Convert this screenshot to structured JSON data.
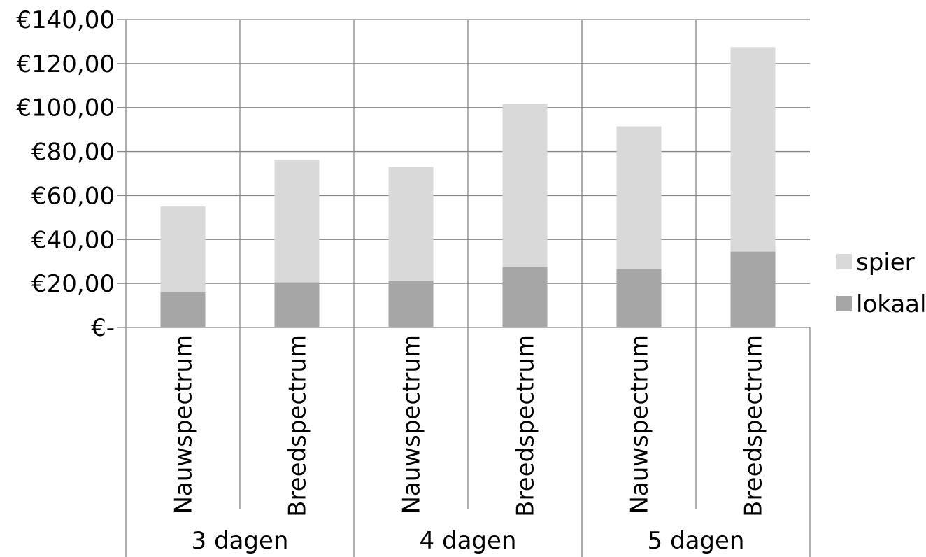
{
  "chart_data": {
    "type": "bar",
    "stacked": true,
    "title": "",
    "xlabel": "",
    "ylabel": "",
    "ylim": [
      0,
      140
    ],
    "yticks": [
      0,
      20,
      40,
      60,
      80,
      100,
      120,
      140
    ],
    "ytick_labels": [
      "€-",
      "€20,00",
      "€40,00",
      "€60,00",
      "€80,00",
      "€100,00",
      "€120,00",
      "€140,00"
    ],
    "grid": true,
    "legend_position": "right",
    "categories": [
      "Nauwspectrum",
      "Breedspectrum",
      "Nauwspectrum",
      "Breedspectrum",
      "Nauwspectrum",
      "Breedspectrum"
    ],
    "groups": [
      "3 dagen",
      "4 dagen",
      "5 dagen"
    ],
    "series": [
      {
        "name": "lokaal",
        "color": "#a6a6a6",
        "values": [
          16,
          20.5,
          21,
          27.5,
          26.5,
          34.5
        ]
      },
      {
        "name": "spier",
        "color": "#d9d9d9",
        "values": [
          39,
          55.5,
          52,
          74,
          65,
          93
        ]
      }
    ],
    "legend_order": [
      "spier",
      "lokaal"
    ]
  }
}
